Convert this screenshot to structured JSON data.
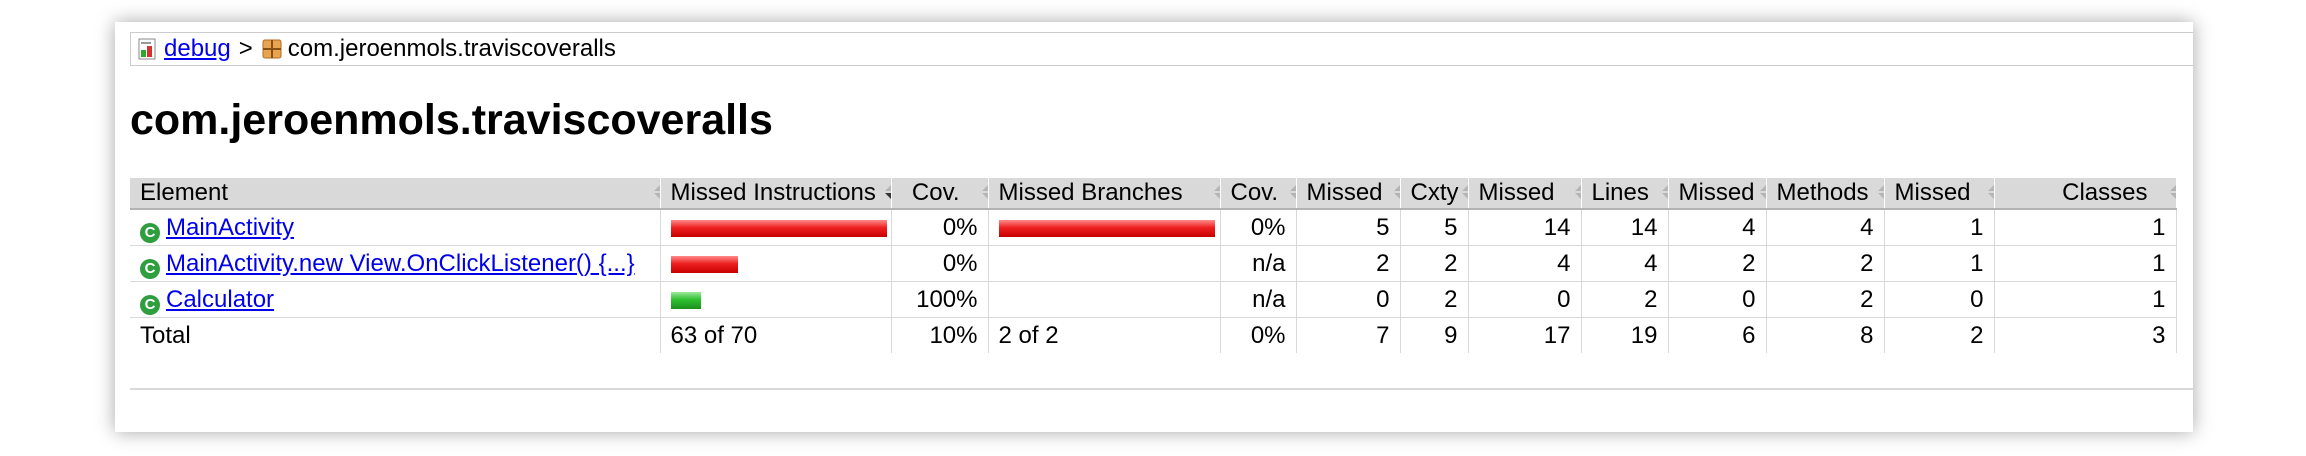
{
  "breadcrumb": {
    "root_link": "debug",
    "separator": ">",
    "current": "com.jeroenmols.traviscoveralls"
  },
  "page_title": "com.jeroenmols.traviscoveralls",
  "table": {
    "headers": {
      "element": "Element",
      "missed_instructions": "Missed Instructions",
      "instr_cov": "Cov.",
      "missed_branches": "Missed Branches",
      "branch_cov": "Cov.",
      "missed_cxty": "Missed",
      "cxty": "Cxty",
      "missed_lines": "Missed",
      "lines": "Lines",
      "missed_methods": "Missed",
      "methods": "Methods",
      "missed_classes": "Missed",
      "classes": "Classes"
    },
    "rows": [
      {
        "name": "MainActivity",
        "instr_bar": {
          "missed_fraction": 1.0,
          "covered_fraction": 0.0
        },
        "instr_cov": "0%",
        "branch_bar": {
          "missed_fraction": 1.0,
          "covered_fraction": 0.0
        },
        "branch_cov": "0%",
        "missed_cxty": "5",
        "cxty": "5",
        "missed_lines": "14",
        "lines": "14",
        "missed_methods": "4",
        "methods": "4",
        "missed_classes": "1",
        "classes": "1"
      },
      {
        "name": "MainActivity.new View.OnClickListener() {...}",
        "instr_bar": {
          "missed_fraction": 0.31,
          "covered_fraction": 0.0
        },
        "instr_cov": "0%",
        "branch_bar": {
          "missed_fraction": 0.0,
          "covered_fraction": 0.0
        },
        "branch_cov": "n/a",
        "missed_cxty": "2",
        "cxty": "2",
        "missed_lines": "4",
        "lines": "4",
        "missed_methods": "2",
        "methods": "2",
        "missed_classes": "1",
        "classes": "1"
      },
      {
        "name": "Calculator",
        "instr_bar": {
          "missed_fraction": 0.0,
          "covered_fraction": 0.14
        },
        "instr_cov": "100%",
        "branch_bar": {
          "missed_fraction": 0.0,
          "covered_fraction": 0.0
        },
        "branch_cov": "n/a",
        "missed_cxty": "0",
        "cxty": "2",
        "missed_lines": "0",
        "lines": "2",
        "missed_methods": "0",
        "methods": "2",
        "missed_classes": "0",
        "classes": "1"
      }
    ],
    "total": {
      "label": "Total",
      "instr": "63 of 70",
      "instr_cov": "10%",
      "branches": "2 of 2",
      "branch_cov": "0%",
      "missed_cxty": "7",
      "cxty": "9",
      "missed_lines": "17",
      "lines": "19",
      "missed_methods": "6",
      "methods": "8",
      "missed_classes": "2",
      "classes": "3"
    }
  },
  "colors": {
    "missed_bar": "#ee2020",
    "covered_bar": "#2fc02f",
    "link": "#0000ee",
    "header_bg": "#d9d9d9"
  }
}
